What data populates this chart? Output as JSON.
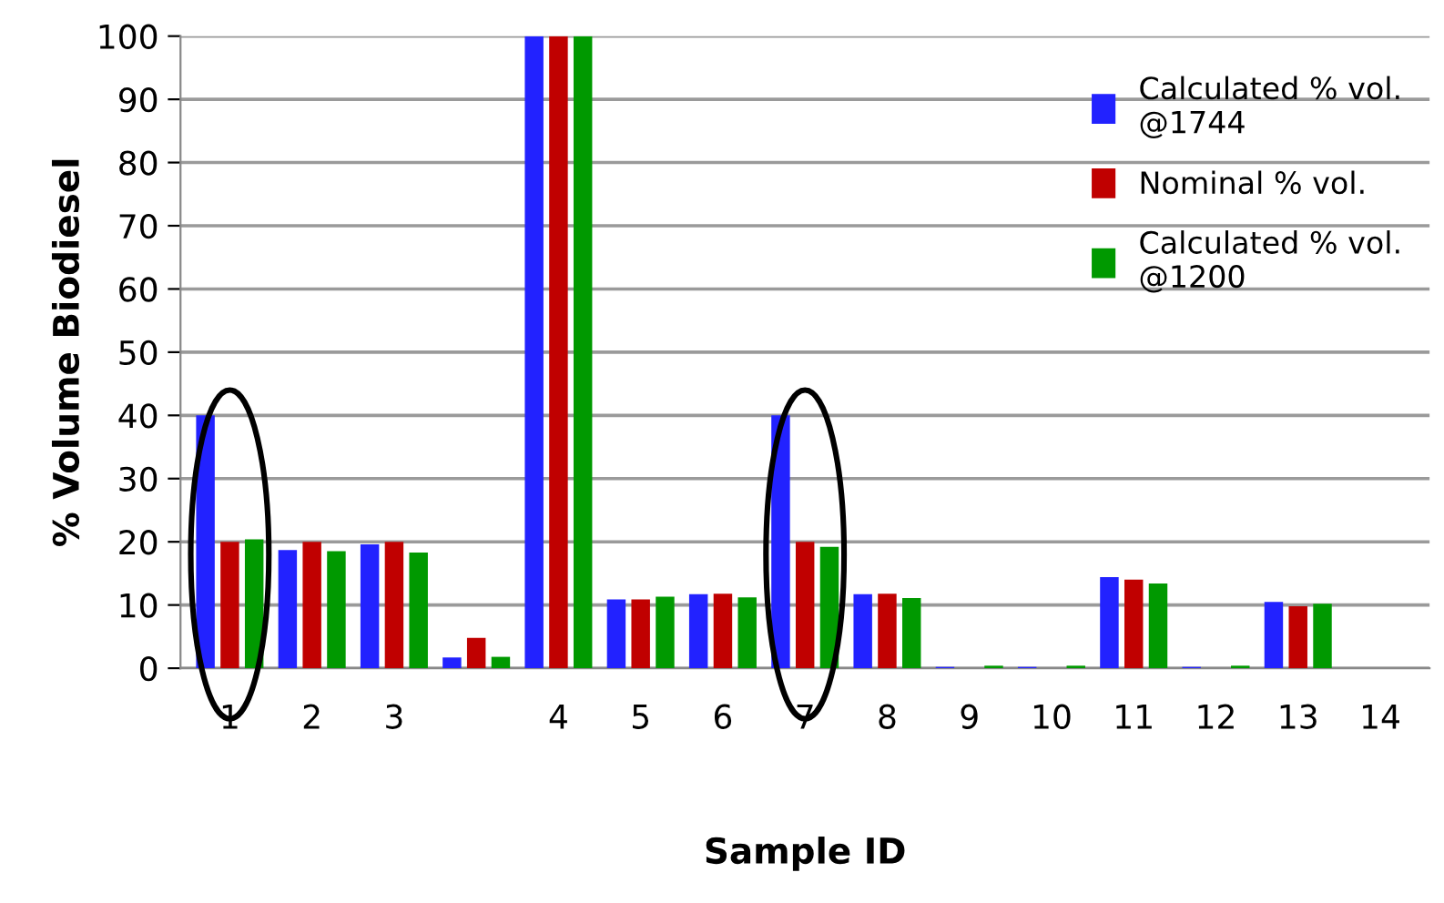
{
  "chart_data": {
    "type": "bar",
    "xlabel": "Sample ID",
    "ylabel": "% Volume Biodiesel",
    "categories": [
      "1",
      "2",
      "3",
      null,
      "4",
      "5",
      "6",
      "7",
      "8",
      "9",
      "10",
      "11",
      "12",
      "13",
      "14"
    ],
    "series": [
      {
        "name": "Calculated % vol. @1744",
        "color": "#2222ff",
        "values": [
          40,
          18.7,
          19.6,
          1.7,
          100,
          10.9,
          11.7,
          40,
          11.7,
          0.2,
          0.2,
          14.4,
          0.2,
          10.5,
          0
        ]
      },
      {
        "name": "Nominal % vol.",
        "color": "#c00000",
        "values": [
          20,
          20,
          20,
          4.8,
          100,
          10.9,
          11.8,
          20,
          11.8,
          0,
          0,
          14.0,
          0,
          9.8,
          0
        ]
      },
      {
        "name": "Calculated % vol. @1200",
        "color": "#009900",
        "values": [
          20.4,
          18.5,
          18.3,
          1.8,
          100,
          11.3,
          11.2,
          19.2,
          11.1,
          0.4,
          0.4,
          13.4,
          0.4,
          10.2,
          0
        ]
      }
    ],
    "ylim": [
      0,
      100
    ],
    "yticks": [
      0,
      10,
      20,
      30,
      40,
      50,
      60,
      70,
      80,
      90,
      100
    ],
    "grid": "y",
    "legend": "top right"
  }
}
